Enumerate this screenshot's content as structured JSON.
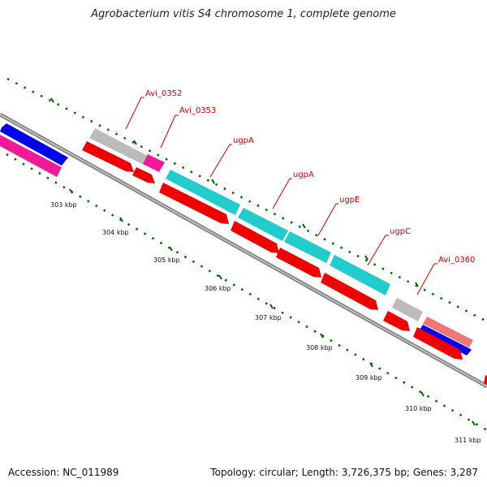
{
  "title": "Agrobacterium vitis S4 chromosome 1, complete genome",
  "footer": {
    "accession": "Accession: NC_011989",
    "summary": "Topology: circular; Length: 3,726,375 bp; Genes: 3,287"
  },
  "colors": {
    "cds_red": "#ee0000",
    "cyan": "#22cccc",
    "gray_gene": "#bbbbbb",
    "magenta": "#ee1a99",
    "blue": "#0000ee",
    "pink": "#ee7777",
    "backbone": "#888888",
    "tick_green": "#006600",
    "label_red": "#cc0000"
  },
  "kbp_ticks": [
    "303 kbp",
    "304 kbp",
    "305 kbp",
    "306 kbp",
    "307 kbp",
    "308 kbp",
    "309 kbp",
    "310 kbp",
    "311 kbp"
  ],
  "gene_labels": [
    {
      "name": "Avi_0352"
    },
    {
      "name": "Avi_0353"
    },
    {
      "name": "ugpA"
    },
    {
      "name": "ugpA"
    },
    {
      "name": "ugpE"
    },
    {
      "name": "ugpC"
    },
    {
      "name": "Avi_0360"
    }
  ]
}
